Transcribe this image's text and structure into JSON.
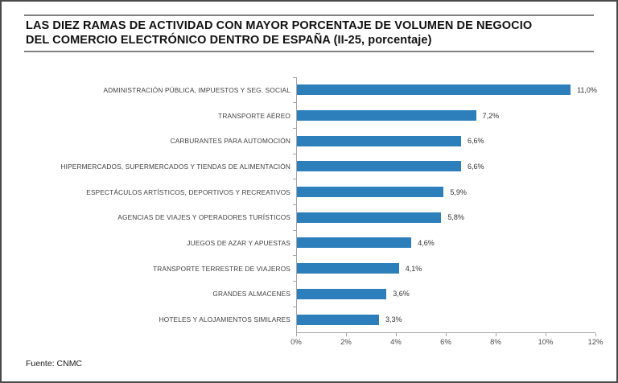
{
  "title": {
    "line1": "LAS DIEZ RAMAS DE ACTIVIDAD CON MAYOR PORCENTAJE DE VOLUMEN DE NEGOCIO",
    "line2": "DEL COMERCIO ELECTRÓNICO DENTRO DE ESPAÑA (II-25, porcentaje)"
  },
  "chart_data": {
    "type": "bar",
    "orientation": "horizontal",
    "title": "LAS DIEZ RAMAS DE ACTIVIDAD CON MAYOR PORCENTAJE DE VOLUMEN DE NEGOCIO DEL COMERCIO ELECTRÓNICO DENTRO DE ESPAÑA (II-25, porcentaje)",
    "categories": [
      "ADMINISTRACIÓN PÚBLICA, IMPUESTOS Y SEG. SOCIAL",
      "TRANSPORTE AÉREO",
      "CARBURANTES PARA AUTOMOCIÓN",
      "HIPERMERCADOS, SUPERMERCADOS Y TIENDAS DE ALIMENTACIÓN",
      "ESPECTÁCULOS ARTÍSTICOS, DEPORTIVOS Y RECREATIVOS",
      "AGENCIAS DE VIAJES Y OPERADORES TURÍSTICOS",
      "JUEGOS DE AZAR Y APUESTAS",
      "TRANSPORTE TERRESTRE DE VIAJEROS",
      "GRANDES ALMACENES",
      "HOTELES Y ALOJAMIENTOS SIMILARES"
    ],
    "values": [
      11.0,
      7.2,
      6.6,
      6.6,
      5.9,
      5.8,
      4.6,
      4.1,
      3.6,
      3.3
    ],
    "value_labels": [
      "11,0%",
      "7,2%",
      "6,6%",
      "6,6%",
      "5,9%",
      "5,8%",
      "4,6%",
      "4,1%",
      "3,6%",
      "3,3%"
    ],
    "x_ticks": [
      "0%",
      "2%",
      "4%",
      "6%",
      "8%",
      "10%",
      "12%"
    ],
    "xlim": [
      0,
      12
    ],
    "xlabel": "",
    "ylabel": "",
    "grid": false,
    "legend": false
  },
  "footer": {
    "source": "Fuente: CNMC"
  },
  "colors": {
    "bar": "#2d7fbc",
    "axis": "#a6a6a6",
    "title_rule": "#808080",
    "label_text": "#404040",
    "frame_border": "#4a4a4a"
  }
}
